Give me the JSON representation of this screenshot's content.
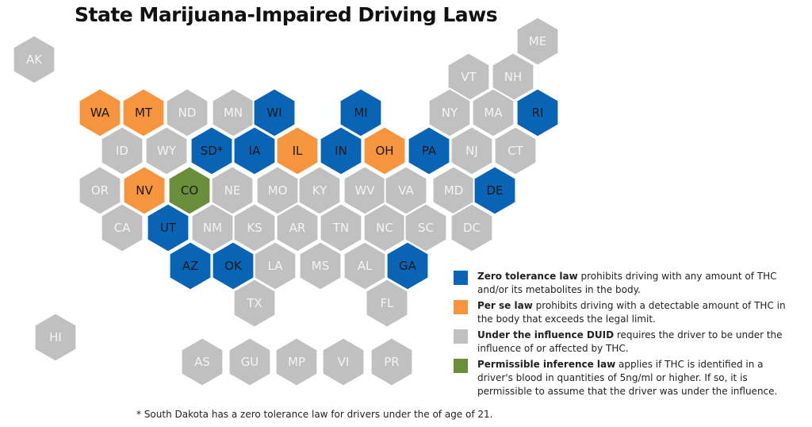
{
  "title": "State Marijuana-Impaired Driving Laws",
  "colors": {
    "zero_tolerance": "#0a64b6",
    "per_se": "#f7953f",
    "duid": "#c0c0c0",
    "permissible_inference": "#6b8e3a",
    "hex_border": "#ffffff",
    "label_dark": "#1a1a1a",
    "label_light": "#f4f4f4"
  },
  "states": [
    {
      "code": "AK",
      "law": "duid"
    },
    {
      "code": "ME",
      "law": "duid"
    },
    {
      "code": "VT",
      "law": "duid"
    },
    {
      "code": "NH",
      "law": "duid"
    },
    {
      "code": "WA",
      "law": "per_se"
    },
    {
      "code": "MT",
      "law": "per_se"
    },
    {
      "code": "ND",
      "law": "duid"
    },
    {
      "code": "MN",
      "law": "duid"
    },
    {
      "code": "WI",
      "law": "zero_tolerance"
    },
    {
      "code": "MI",
      "law": "zero_tolerance"
    },
    {
      "code": "NY",
      "law": "duid"
    },
    {
      "code": "MA",
      "law": "duid"
    },
    {
      "code": "RI",
      "law": "zero_tolerance"
    },
    {
      "code": "ID",
      "law": "duid"
    },
    {
      "code": "WY",
      "law": "duid"
    },
    {
      "code": "SD*",
      "law": "zero_tolerance"
    },
    {
      "code": "IA",
      "law": "zero_tolerance"
    },
    {
      "code": "IL",
      "law": "per_se"
    },
    {
      "code": "IN",
      "law": "zero_tolerance"
    },
    {
      "code": "OH",
      "law": "per_se"
    },
    {
      "code": "PA",
      "law": "zero_tolerance"
    },
    {
      "code": "NJ",
      "law": "duid"
    },
    {
      "code": "CT",
      "law": "duid"
    },
    {
      "code": "OR",
      "law": "duid"
    },
    {
      "code": "NV",
      "law": "per_se"
    },
    {
      "code": "CO",
      "law": "permissible_inference"
    },
    {
      "code": "NE",
      "law": "duid"
    },
    {
      "code": "MO",
      "law": "duid"
    },
    {
      "code": "KY",
      "law": "duid"
    },
    {
      "code": "WV",
      "law": "duid"
    },
    {
      "code": "VA",
      "law": "duid"
    },
    {
      "code": "MD",
      "law": "duid"
    },
    {
      "code": "DE",
      "law": "zero_tolerance"
    },
    {
      "code": "CA",
      "law": "duid"
    },
    {
      "code": "UT",
      "law": "zero_tolerance"
    },
    {
      "code": "NM",
      "law": "duid"
    },
    {
      "code": "KS",
      "law": "duid"
    },
    {
      "code": "AR",
      "law": "duid"
    },
    {
      "code": "TN",
      "law": "duid"
    },
    {
      "code": "NC",
      "law": "duid"
    },
    {
      "code": "SC",
      "law": "duid"
    },
    {
      "code": "DC",
      "law": "duid"
    },
    {
      "code": "AZ",
      "law": "zero_tolerance"
    },
    {
      "code": "OK",
      "law": "zero_tolerance"
    },
    {
      "code": "LA",
      "law": "duid"
    },
    {
      "code": "MS",
      "law": "duid"
    },
    {
      "code": "AL",
      "law": "duid"
    },
    {
      "code": "GA",
      "law": "zero_tolerance"
    },
    {
      "code": "TX",
      "law": "duid"
    },
    {
      "code": "FL",
      "law": "duid"
    },
    {
      "code": "HI",
      "law": "duid"
    },
    {
      "code": "AS",
      "law": "duid"
    },
    {
      "code": "GU",
      "law": "duid"
    },
    {
      "code": "MP",
      "law": "duid"
    },
    {
      "code": "VI",
      "law": "duid"
    },
    {
      "code": "PR",
      "law": "duid"
    }
  ],
  "legend": [
    {
      "law": "zero_tolerance",
      "term": "Zero tolerance law",
      "desc": " prohibits driving with any amount of THC and/or its metabolites in the body."
    },
    {
      "law": "per_se",
      "term": "Per se law",
      "desc": " prohibits driving with a detectable amount of THC in the body that exceeds the legal limit."
    },
    {
      "law": "duid",
      "term": "Under the influence DUID",
      "desc": " requires the driver to be under the influence of or affected by THC."
    },
    {
      "law": "permissible_inference",
      "term": "Permissible inference law",
      "desc": " applies if THC is identified in a driver's blood in quantities of 5ng/ml or higher. If so, it is permissible to assume that the driver was under the influence."
    }
  ],
  "footnote": "* South Dakota has a zero tolerance law for drivers under the of age of 21."
}
